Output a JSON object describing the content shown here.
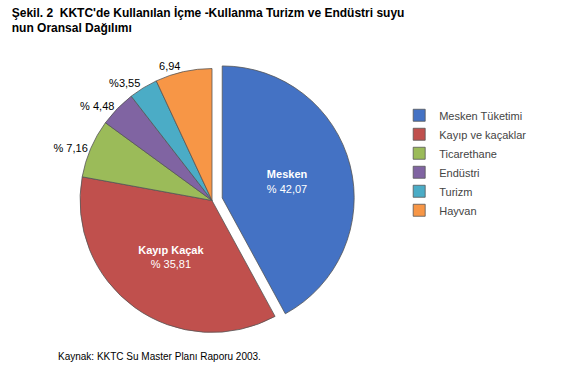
{
  "chart_data": {
    "type": "pie",
    "title": "Şekil. 2  KKTC'de Kullanılan İçme -Kullanma Turizm ve Endüstri suyu\nnun Oransal Dağılımı",
    "categories": [
      "Mesken Tüketimi",
      "Kayıp ve kaçaklar",
      "Ticarethane",
      "Endüstri",
      "Turizm",
      "Hayvan"
    ],
    "values": [
      42.07,
      35.81,
      7.16,
      4.48,
      3.55,
      6.94
    ],
    "value_labels": [
      "% 42,07",
      "% 35,81",
      "% 7,16",
      "% 4,48",
      "%3,55",
      "6,94"
    ],
    "colors": [
      "#4472C4",
      "#C0504D",
      "#9BBB59",
      "#8064A2",
      "#4BACC6",
      "#F79646"
    ],
    "data_labels": true,
    "legend": "right",
    "annotations": [
      {
        "category": "Mesken Tüketimi",
        "text": "Mesken"
      },
      {
        "category": "Kayıp ve kaçaklar",
        "text": "Kayıp Kaçak"
      },
      {
        "text": "Kaynak: KKTC Su Master Planı Raporu 2003."
      }
    ]
  }
}
